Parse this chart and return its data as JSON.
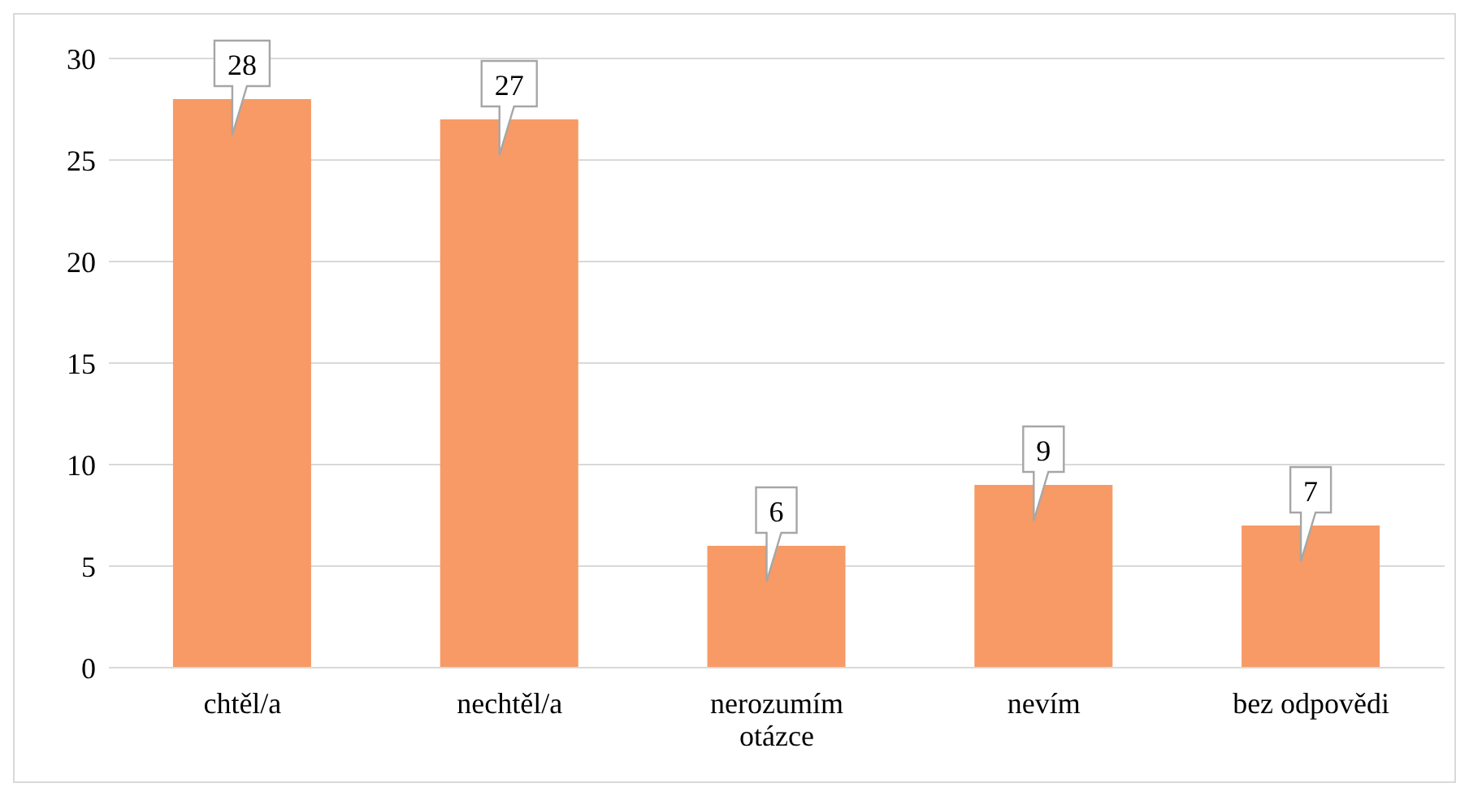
{
  "chart_data": {
    "type": "bar",
    "categories": [
      "chtěl/a",
      "nechtěl/a",
      "nerozumím otázce",
      "nevím",
      "bez odpovědi"
    ],
    "values": [
      28,
      27,
      6,
      9,
      7
    ],
    "color": "#f79a65",
    "ylim": [
      0,
      30
    ],
    "yticks": [
      0,
      5,
      10,
      15,
      20,
      25,
      30
    ],
    "grid": "y",
    "data_labels": true
  }
}
